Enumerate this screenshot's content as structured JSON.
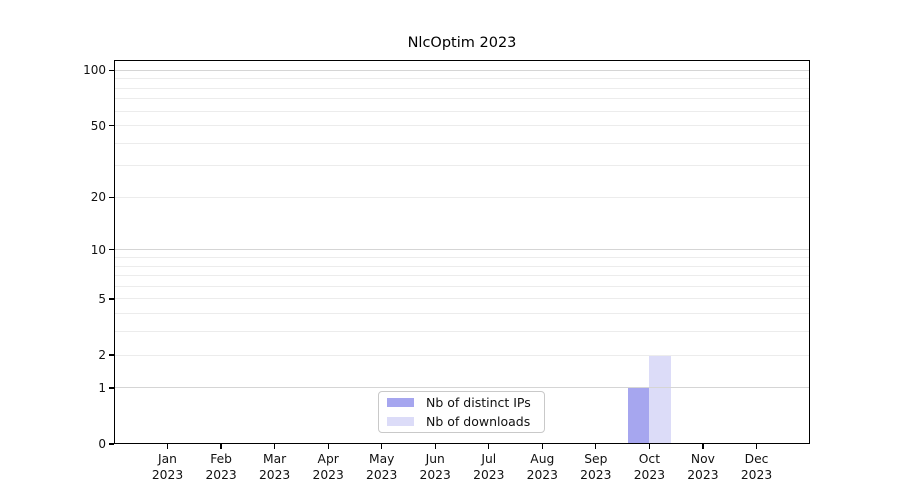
{
  "chart_data": {
    "type": "bar",
    "title": "NlcOptim 2023",
    "categories": [
      "Jan",
      "Feb",
      "Mar",
      "Apr",
      "May",
      "Jun",
      "Jul",
      "Aug",
      "Sep",
      "Oct",
      "Nov",
      "Dec"
    ],
    "category_year": "2023",
    "series": [
      {
        "name": "Nb of distinct IPs",
        "color": "#a6a6ef",
        "values": [
          0,
          0,
          0,
          0,
          0,
          0,
          0,
          0,
          0,
          1,
          0,
          0
        ]
      },
      {
        "name": "Nb of downloads",
        "color": "#dcdcf8",
        "values": [
          0,
          0,
          0,
          0,
          0,
          0,
          0,
          0,
          0,
          2,
          0,
          0
        ]
      }
    ],
    "y_axis": {
      "scale": "log1p",
      "ticks": [
        0,
        1,
        2,
        5,
        10,
        20,
        50,
        100
      ],
      "gridlines_major": [
        1,
        10,
        100
      ],
      "gridlines_minor": [
        2,
        3,
        4,
        5,
        6,
        7,
        8,
        9,
        20,
        30,
        40,
        50,
        60,
        70,
        80,
        90
      ],
      "range": [
        0,
        113
      ]
    },
    "x_axis": {
      "tick_labels_line2": "2023"
    },
    "legend_position": "lower center",
    "grid": true
  },
  "colors": {
    "background": "#ffffff",
    "spine": "#000000",
    "major_grid": "#d5d5d5",
    "minor_grid": "#ececec",
    "legend_border": "#c9c9c9",
    "text": "#111111"
  }
}
